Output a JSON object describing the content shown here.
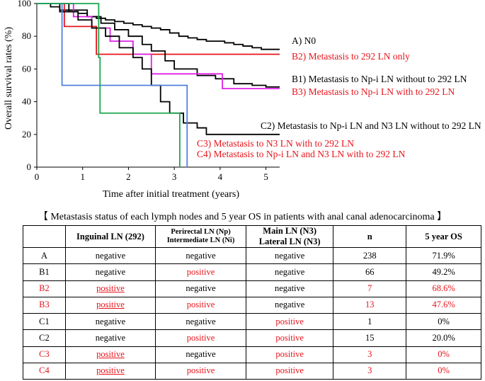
{
  "chart_data": {
    "type": "line",
    "subtype": "kaplan-meier step curves",
    "xlabel": "Time after initial treatment (years)",
    "ylabel": "Overall survival rates (%)",
    "xlim": [
      0,
      5.3
    ],
    "ylim": [
      0,
      100
    ],
    "x_ticks": [
      "0",
      "1",
      "2",
      "3",
      "4",
      "5"
    ],
    "y_ticks": [
      "0",
      "20",
      "40",
      "60",
      "80",
      "100"
    ],
    "grid": false,
    "legend": "labels right of curve ends",
    "series": [
      {
        "name": "A) N0",
        "color": "#000000",
        "x": [
          0,
          0.3,
          0.5,
          0.7,
          0.9,
          1.1,
          1.3,
          1.5,
          1.7,
          1.9,
          2.1,
          2.3,
          2.5,
          2.7,
          2.9,
          3.1,
          3.3,
          3.5,
          3.7,
          3.9,
          4.1,
          4.3,
          4.5,
          4.7,
          4.9,
          5.1,
          5.3
        ],
        "y": [
          100,
          98,
          96,
          95,
          94,
          92,
          91,
          90,
          89,
          88,
          87,
          86,
          85,
          84,
          82,
          80,
          79,
          78,
          77,
          77,
          76,
          75,
          74,
          73,
          72,
          72,
          72
        ]
      },
      {
        "name": "B2) Metastasis to 292 LN only",
        "color": "#e8141b",
        "x": [
          0,
          0.6,
          1.3,
          5.3
        ],
        "y": [
          100,
          86,
          69,
          69
        ]
      },
      {
        "name": "B1) Metastasis to Np-i LN without to 292 LN",
        "color": "#000000",
        "x": [
          0,
          0.7,
          1.1,
          1.4,
          1.7,
          2.0,
          2.3,
          2.5,
          2.8,
          3.0,
          3.5,
          3.9,
          4.3,
          4.7,
          5.0,
          5.3
        ],
        "y": [
          100,
          96,
          92,
          88,
          84,
          80,
          75,
          71,
          65,
          60,
          56,
          54,
          51,
          50,
          49,
          49
        ]
      },
      {
        "name": "B3) Metastasis to Np-i LN with to 292 LN",
        "color": "#e020e8",
        "x": [
          0,
          0.8,
          1.2,
          1.6,
          2.1,
          2.5,
          3.9,
          4.05,
          5.3
        ],
        "y": [
          100,
          92,
          85,
          77,
          69,
          57,
          57,
          48,
          48
        ]
      },
      {
        "name": "C2) Metastasis to Np-i LN and N3 LN without to 292 LN",
        "color": "#000000",
        "x": [
          0,
          0.5,
          0.9,
          1.2,
          1.5,
          1.8,
          2.1,
          2.3,
          2.5,
          2.7,
          2.9,
          3.2,
          3.5,
          3.7,
          5.3
        ],
        "y": [
          100,
          95,
          90,
          85,
          80,
          73,
          67,
          60,
          50,
          40,
          33,
          27,
          24,
          20,
          20
        ]
      },
      {
        "name": "C3) Metastasis to N3 LN with to 292 LN",
        "color": "#5080e0",
        "x": [
          0,
          0.55,
          3.2,
          3.28
        ],
        "y": [
          100,
          50,
          50,
          0
        ]
      },
      {
        "name": "C4) Metastasis to Np-i LN and N3 LN with to 292 LN",
        "color": "#1aa84e",
        "x": [
          0,
          1.15,
          1.35,
          1.35,
          1.38,
          3.1,
          3.12
        ],
        "y": [
          100,
          100,
          67,
          67,
          33,
          33,
          0
        ]
      }
    ]
  },
  "table": {
    "caption": "【 Metastasis status of each lymph nodes and 5 year OS in patients with anal canal adenocarcinoma 】",
    "headers": {
      "h1": "Inguinal LN (292)",
      "h2a": "Perirectal LN (Np)",
      "h2b": "Intermediate LN (Ni)",
      "h3a": "Main LN (N3)",
      "h3b": "Lateral LN (N3)",
      "h4": "n",
      "h5": "5 year OS"
    },
    "rows": [
      {
        "group": "A",
        "inguinal": "negative",
        "np": "negative",
        "n3": "negative",
        "n": "238",
        "os": "71.9%"
      },
      {
        "group": "B1",
        "inguinal": "negative",
        "np": "positive",
        "n3": "negative",
        "n": "66",
        "os": "49.2%"
      },
      {
        "group": "B2",
        "inguinal": "positive",
        "np": "negative",
        "n3": "negative",
        "n": "7",
        "os": "68.6%"
      },
      {
        "group": "B3",
        "inguinal": "positive",
        "np": "positive",
        "n3": "negative",
        "n": "13",
        "os": "47.6%"
      },
      {
        "group": "C1",
        "inguinal": "negative",
        "np": "negative",
        "n3": "positive",
        "n": "1",
        "os": "0%"
      },
      {
        "group": "C2",
        "inguinal": "negative",
        "np": "positive",
        "n3": "positive",
        "n": "15",
        "os": "20.0%"
      },
      {
        "group": "C3",
        "inguinal": "positive",
        "np": "negative",
        "n3": "positive",
        "n": "3",
        "os": "0%"
      },
      {
        "group": "C4",
        "inguinal": "positive",
        "np": "positive",
        "n3": "positive",
        "n": "3",
        "os": "0%"
      }
    ]
  }
}
